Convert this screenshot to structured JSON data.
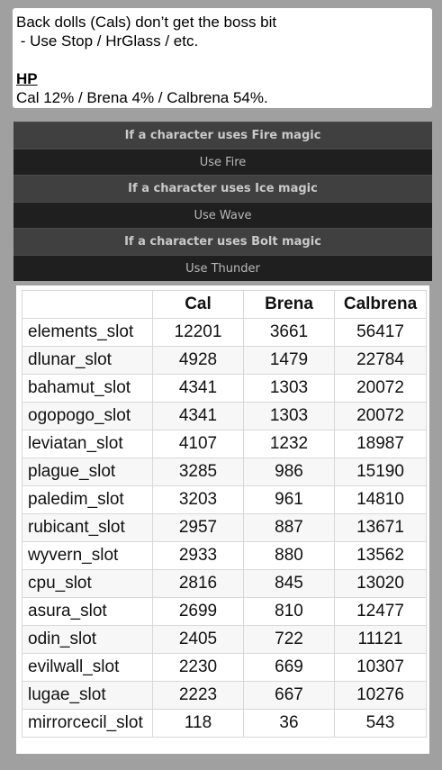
{
  "notes": {
    "line1": "Back dolls (Cals) don’t get the boss bit",
    "line2": " - Use Stop / HrGlass / etc.",
    "hp_heading": "HP",
    "hp_line": "Cal 12% / Brena 4% / Calbrena 54%."
  },
  "rules": [
    {
      "condition": "If a character uses Fire magic",
      "action": "Use Fire"
    },
    {
      "condition": "If a character uses Ice magic",
      "action": "Use Wave"
    },
    {
      "condition": "If a character uses Bolt magic",
      "action": "Use Thunder"
    }
  ],
  "table": {
    "headers": [
      "",
      "Cal",
      "Brena",
      "Calbrena"
    ],
    "rows": [
      [
        "elements_slot",
        "12201",
        "3661",
        "56417"
      ],
      [
        "dlunar_slot",
        "4928",
        "1479",
        "22784"
      ],
      [
        "bahamut_slot",
        "4341",
        "1303",
        "20072"
      ],
      [
        "ogopogo_slot",
        "4341",
        "1303",
        "20072"
      ],
      [
        "leviatan_slot",
        "4107",
        "1232",
        "18987"
      ],
      [
        "plague_slot",
        "3285",
        "986",
        "15190"
      ],
      [
        "paledim_slot",
        "3203",
        "961",
        "14810"
      ],
      [
        "rubicant_slot",
        "2957",
        "887",
        "13671"
      ],
      [
        "wyvern_slot",
        "2933",
        "880",
        "13562"
      ],
      [
        "cpu_slot",
        "2816",
        "845",
        "13020"
      ],
      [
        "asura_slot",
        "2699",
        "810",
        "12477"
      ],
      [
        "odin_slot",
        "2405",
        "722",
        "11121"
      ],
      [
        "evilwall_slot",
        "2230",
        "669",
        "10307"
      ],
      [
        "lugae_slot",
        "2223",
        "667",
        "10276"
      ],
      [
        "mirrorcecil_slot",
        "118",
        "36",
        "543"
      ]
    ]
  }
}
